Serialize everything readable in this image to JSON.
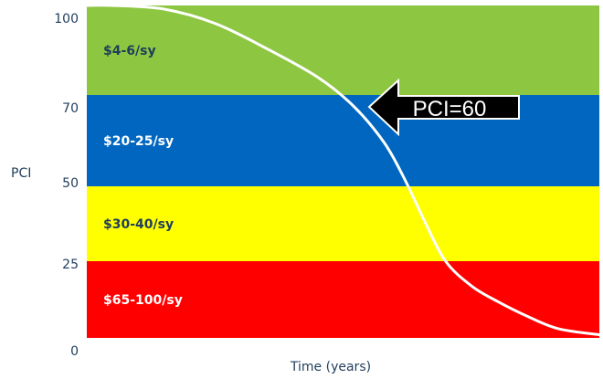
{
  "chart_data": {
    "type": "area",
    "ylabel": "PCI",
    "xlabel": "Time (years)",
    "ylim": [
      0,
      100
    ],
    "yticks": [
      100,
      70,
      50,
      25,
      0
    ],
    "bands": [
      {
        "from": 75,
        "to": 100,
        "label": "$4-6/sy",
        "color": "#8DC641",
        "label_color": "#1f3d5c"
      },
      {
        "from": 50,
        "to": 75,
        "label": "$20-25/sy",
        "color": "#0066BF",
        "label_color": "#ffffff"
      },
      {
        "from": 25,
        "to": 50,
        "label": "$30-40/sy",
        "color": "#FFFF00",
        "label_color": "#1f3d5c"
      },
      {
        "from": 0,
        "to": 25,
        "label": "$65-100/sy",
        "color": "#FF0000",
        "label_color": "#ffffff"
      }
    ],
    "curve": {
      "color": "#ffffff",
      "x": [
        0,
        0.05,
        0.15,
        0.25,
        0.35,
        0.45,
        0.52,
        0.58,
        0.62,
        0.66,
        0.7,
        0.75,
        0.8,
        0.86,
        0.92,
        1.0
      ],
      "y": [
        100,
        100,
        99,
        95,
        88,
        80,
        72,
        62,
        52,
        38,
        25,
        17,
        12,
        7,
        3,
        1
      ]
    },
    "annotation": {
      "text": "PCI=60",
      "arrow_color": "#000000",
      "text_color": "#ffffff"
    }
  }
}
